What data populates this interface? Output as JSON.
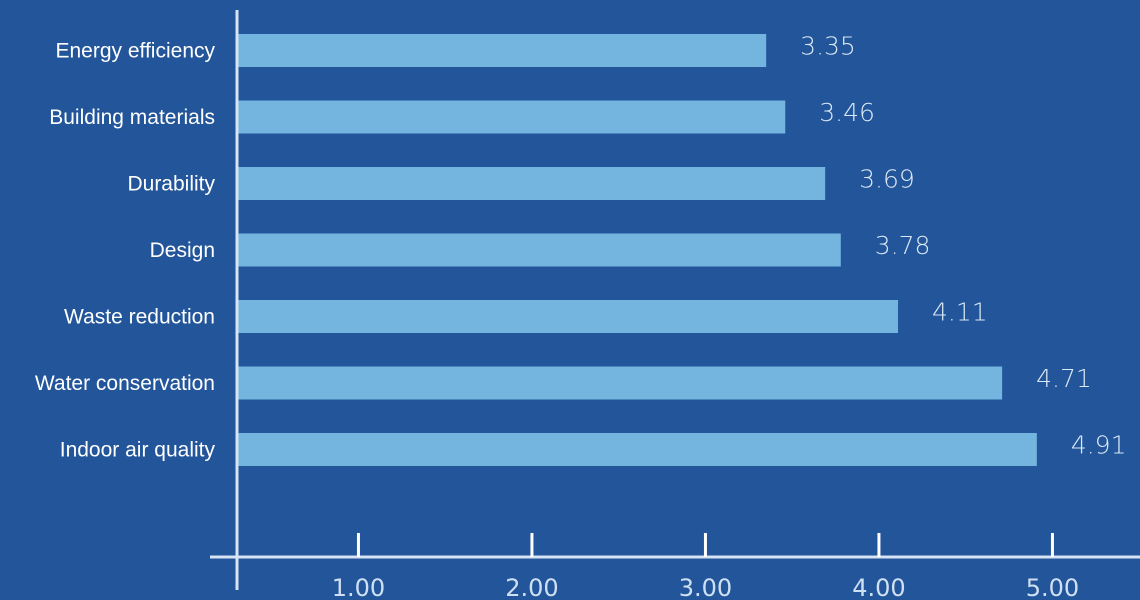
{
  "chart_data": {
    "type": "bar",
    "orientation": "horizontal",
    "categories": [
      "Energy efficiency",
      "Building materials",
      "Durability",
      "Design",
      "Waste reduction",
      "Water conservation",
      "Indoor air quality"
    ],
    "values": [
      3.35,
      3.46,
      3.69,
      3.78,
      4.11,
      4.71,
      4.91
    ],
    "value_labels": [
      "3.35",
      "3.46",
      "3.69",
      "3.78",
      "4.11",
      "4.71",
      "4.91"
    ],
    "x_ticks": [
      1,
      2,
      3,
      4,
      5
    ],
    "x_tick_labels": [
      "1.00",
      "2.00",
      "3.00",
      "4.00",
      "5.00"
    ],
    "xlim": [
      0.3,
      5.6
    ],
    "title": "",
    "xlabel": "",
    "ylabel": "",
    "grid": false,
    "colors": {
      "background": "#22559a",
      "bar": "#74b5e0",
      "axis": "#d6e4f4"
    }
  }
}
